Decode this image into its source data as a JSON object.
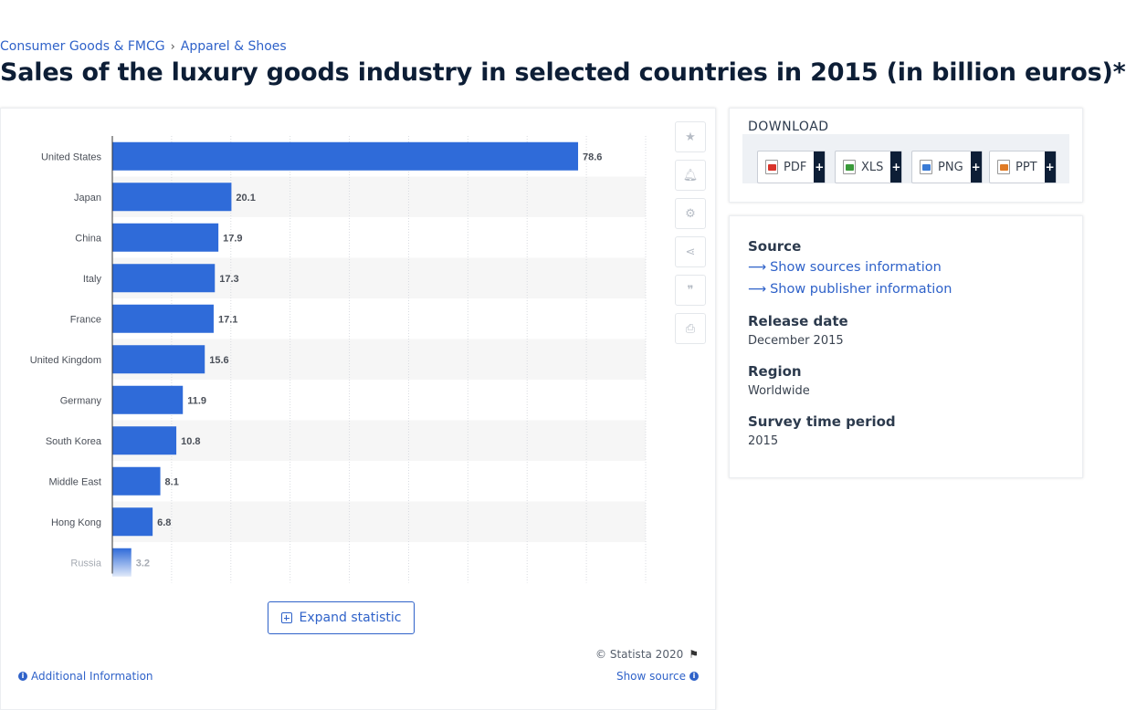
{
  "breadcrumb": {
    "items": [
      "Consumer Goods & FMCG",
      "Apparel & Shoes"
    ],
    "separator": "›"
  },
  "page": {
    "title": "Sales of the luxury goods industry in selected countries in 2015 (in billion euros)*"
  },
  "chart_data": {
    "type": "bar",
    "orientation": "horizontal",
    "categories": [
      "United States",
      "Japan",
      "China",
      "Italy",
      "France",
      "United Kingdom",
      "Germany",
      "South Korea",
      "Middle East",
      "Hong Kong",
      "Russia"
    ],
    "values": [
      78.6,
      20.1,
      17.9,
      17.3,
      17.1,
      15.6,
      11.9,
      10.8,
      8.1,
      6.8,
      3.2
    ],
    "xlim": [
      0,
      90
    ],
    "grid": true,
    "bar_color": "#2f6bd9",
    "stripe_color": "#f6f6f6",
    "faded_last_row": true,
    "data_labels": true
  },
  "chart_panel": {
    "expand_label": "Expand statistic",
    "copyright": "© Statista 2020",
    "additional_info": "Additional Information",
    "show_source": "Show source",
    "actions": [
      "star-icon",
      "bell-icon",
      "gear-icon",
      "share-icon",
      "quote-icon",
      "print-icon"
    ]
  },
  "download": {
    "title": "DOWNLOAD",
    "buttons": [
      {
        "label": "PDF",
        "color": "#d9342b"
      },
      {
        "label": "XLS",
        "color": "#3a9a3a"
      },
      {
        "label": "PNG",
        "color": "#3a7bd5"
      },
      {
        "label": "PPT",
        "color": "#e07b25"
      }
    ],
    "plus": "+"
  },
  "meta": {
    "source_label": "Source",
    "show_sources": "Show sources information",
    "show_publisher": "Show publisher information",
    "release_label": "Release date",
    "release_value": "December 2015",
    "region_label": "Region",
    "region_value": "Worldwide",
    "survey_label": "Survey time period",
    "survey_value": "2015"
  }
}
